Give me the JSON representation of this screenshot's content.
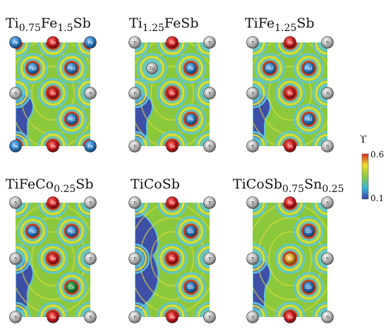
{
  "panels": [
    {
      "title_parts": [
        [
          "Ti",
          ""
        ],
        [
          "0.75",
          "sub"
        ],
        [
          "Fe",
          ""
        ],
        [
          "1.5",
          "sub"
        ],
        [
          "Sb",
          ""
        ]
      ],
      "atoms": [
        {
          "el": "Fe",
          "label": "Fe",
          "pos": "tl"
        },
        {
          "el": "Sb",
          "label": "Sb",
          "pos": "tm"
        },
        {
          "el": "Fe",
          "label": "Fe",
          "pos": "tr"
        },
        {
          "el": "Fe",
          "label": "Fe2",
          "pos": "i1"
        },
        {
          "el": "Fe",
          "label": "Fe1",
          "pos": "i2"
        },
        {
          "el": "Ti",
          "label": "Ti",
          "pos": "ml"
        },
        {
          "el": "Sb",
          "label": "Sb",
          "pos": "mm"
        },
        {
          "el": "Ti",
          "label": "Ti",
          "pos": "mr"
        },
        {
          "el": "Fe",
          "label": "Fe1",
          "pos": "i3"
        },
        {
          "el": "Fe",
          "label": "Fe",
          "pos": "bl"
        },
        {
          "el": "Sb",
          "label": "Sb",
          "pos": "bm"
        },
        {
          "el": "Fe",
          "label": "Fe",
          "pos": "br"
        }
      ]
    },
    {
      "title_parts": [
        [
          "Ti",
          ""
        ],
        [
          "1.25",
          "sub"
        ],
        [
          "FeSb",
          ""
        ]
      ],
      "atoms": [
        {
          "el": "Ti",
          "label": "Ti",
          "pos": "tl"
        },
        {
          "el": "Sb",
          "label": "Sb",
          "pos": "tm"
        },
        {
          "el": "Ti",
          "label": "Ti",
          "pos": "tr"
        },
        {
          "el": "Ti",
          "label": "Ti2",
          "pos": "i1"
        },
        {
          "el": "Fe",
          "label": "Fe",
          "pos": "i2"
        },
        {
          "el": "Ti",
          "label": "Ti",
          "pos": "ml"
        },
        {
          "el": "Sb",
          "label": "Sb",
          "pos": "mm"
        },
        {
          "el": "Ti",
          "label": "Ti",
          "pos": "mr"
        },
        {
          "el": "Fe",
          "label": "Fe",
          "pos": "i3"
        },
        {
          "el": "Ti",
          "label": "Ti",
          "pos": "bl"
        },
        {
          "el": "Sb",
          "label": "Sb",
          "pos": "bm"
        },
        {
          "el": "Ti",
          "label": "Ti",
          "pos": "br"
        }
      ]
    },
    {
      "title_parts": [
        [
          "TiFe",
          ""
        ],
        [
          "1.25",
          "sub"
        ],
        [
          "Sb",
          ""
        ]
      ],
      "atoms": [
        {
          "el": "Ti",
          "label": "Ti",
          "pos": "tl"
        },
        {
          "el": "Sb",
          "label": "Sb",
          "pos": "tm"
        },
        {
          "el": "Ti",
          "label": "Ti",
          "pos": "tr"
        },
        {
          "el": "Fe",
          "label": "Fe2",
          "pos": "i1"
        },
        {
          "el": "Fe",
          "label": "Fe1",
          "pos": "i2"
        },
        {
          "el": "Ti",
          "label": "Ti",
          "pos": "ml"
        },
        {
          "el": "Sb",
          "label": "Sb",
          "pos": "mm"
        },
        {
          "el": "Ti",
          "label": "Ti",
          "pos": "mr"
        },
        {
          "el": "Fe",
          "label": "Fe1",
          "pos": "i3"
        },
        {
          "el": "Ti",
          "label": "Ti",
          "pos": "bl"
        },
        {
          "el": "Sb",
          "label": "Sb",
          "pos": "bm"
        },
        {
          "el": "Ti",
          "label": "Ti",
          "pos": "br"
        }
      ]
    },
    {
      "title_parts": [
        [
          "TiFeCo",
          ""
        ],
        [
          "0.25",
          "sub"
        ],
        [
          "Sb",
          ""
        ]
      ],
      "atoms": [
        {
          "el": "Ti",
          "label": "Ti",
          "pos": "tl"
        },
        {
          "el": "Sb",
          "label": "Sb",
          "pos": "tm"
        },
        {
          "el": "Ti",
          "label": "Ti",
          "pos": "tr"
        },
        {
          "el": "Fe",
          "label": "Fe2",
          "pos": "i1"
        },
        {
          "el": "Fe",
          "label": "Fe1",
          "pos": "i2"
        },
        {
          "el": "Ti",
          "label": "Ti",
          "pos": "ml"
        },
        {
          "el": "Sb",
          "label": "Sb",
          "pos": "mm"
        },
        {
          "el": "Ti",
          "label": "Ti",
          "pos": "mr"
        },
        {
          "el": "Co",
          "label": "Co",
          "pos": "i3"
        },
        {
          "el": "Ti",
          "label": "Ti",
          "pos": "bl"
        },
        {
          "el": "Sb",
          "label": "Sb",
          "pos": "bm"
        },
        {
          "el": "Ti",
          "label": "Ti",
          "pos": "br"
        }
      ]
    },
    {
      "title_parts": [
        [
          "TiCoSb",
          ""
        ]
      ],
      "atoms": [
        {
          "el": "Ti",
          "label": "Ti",
          "pos": "tl"
        },
        {
          "el": "Sb",
          "label": "Sb",
          "pos": "tm"
        },
        {
          "el": "Ti",
          "label": "Ti",
          "pos": "tr"
        },
        {
          "el": "Co",
          "label": "Co",
          "pos": "i2"
        },
        {
          "el": "Ti",
          "label": "Ti",
          "pos": "ml"
        },
        {
          "el": "Sb",
          "label": "Sb",
          "pos": "mm"
        },
        {
          "el": "Ti",
          "label": "Ti",
          "pos": "mr"
        },
        {
          "el": "Co",
          "label": "Co",
          "pos": "i3"
        },
        {
          "el": "Ti",
          "label": "Ti",
          "pos": "bl"
        },
        {
          "el": "Sb",
          "label": "Sb",
          "pos": "bm"
        },
        {
          "el": "Ti",
          "label": "Ti",
          "pos": "br"
        }
      ]
    },
    {
      "title_parts": [
        [
          "TiCoSb",
          ""
        ],
        [
          "0.75",
          "sub"
        ],
        [
          "Sn",
          ""
        ],
        [
          "0.25",
          "sub"
        ]
      ],
      "atoms": [
        {
          "el": "Ti",
          "label": "Ti",
          "pos": "tl"
        },
        {
          "el": "Sb",
          "label": "Sb",
          "pos": "tm"
        },
        {
          "el": "Ti",
          "label": "Ti",
          "pos": "tr"
        },
        {
          "el": "Co",
          "label": "Co",
          "pos": "i2"
        },
        {
          "el": "Ti",
          "label": "Ti",
          "pos": "ml"
        },
        {
          "el": "Sn",
          "label": "Sn",
          "pos": "mm"
        },
        {
          "el": "Ti",
          "label": "Ti",
          "pos": "mr"
        },
        {
          "el": "Co",
          "label": "Co",
          "pos": "i3"
        },
        {
          "el": "Ti",
          "label": "Ti",
          "pos": "bl"
        },
        {
          "el": "Sb",
          "label": "Sb",
          "pos": "bm"
        },
        {
          "el": "Ti",
          "label": "Ti",
          "pos": "br"
        }
      ]
    }
  ],
  "colorbar": {
    "symbol": "ϒ",
    "max": "0.6",
    "min": "0.1"
  },
  "colors": {
    "Sb": "#c8191e",
    "Ti": "#b9b9b9",
    "Fe": "#2f7cc1",
    "Co": "#2d6fb0",
    "Sn": "#d99a1e",
    "Fe_doped": "#1f8a3a",
    "map_green": "#8cc83c",
    "map_yellow": "#e2df3a",
    "map_cyan": "#5fc6d9",
    "map_blue": "#3e4fa8",
    "map_red": "#d33a26"
  }
}
